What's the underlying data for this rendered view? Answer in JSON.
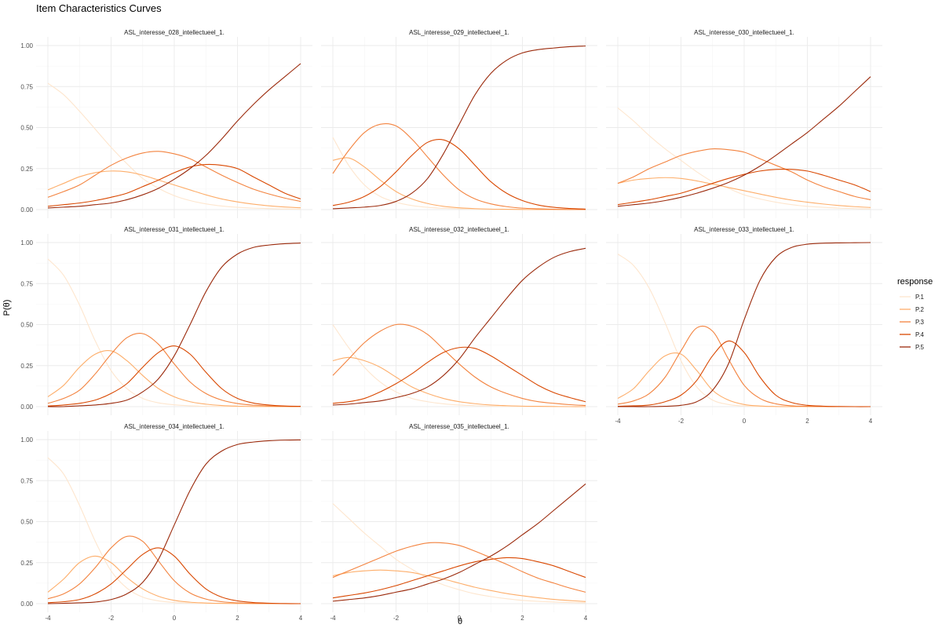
{
  "chart_data": {
    "type": "line",
    "title": "Item Characteristics Curves",
    "xlabel": "θ",
    "ylabel": "P(θ)",
    "xlim": [
      -4,
      4
    ],
    "ylim": [
      0,
      1
    ],
    "x_ticks": [
      "-4",
      "-2",
      "0",
      "2",
      "4"
    ],
    "y_ticks": [
      "0.00",
      "0.25",
      "0.50",
      "0.75",
      "1.00"
    ],
    "grid": true,
    "legend": {
      "title": "response",
      "position": "right",
      "entries": [
        "P.1",
        "P.2",
        "P.3",
        "P.4",
        "P.5"
      ]
    },
    "series_colors": [
      "#fee6ce",
      "#fdae6b",
      "#f3833f",
      "#d94801",
      "#9b2a0c"
    ],
    "x": [
      -4,
      -3.5,
      -3,
      -2.5,
      -2,
      -1.5,
      -1,
      -0.5,
      0,
      0.5,
      1,
      1.5,
      2,
      2.5,
      3,
      3.5,
      4
    ],
    "panels": [
      {
        "title": "ASL_interesse_028_intellectueel_1.",
        "series": [
          {
            "name": "P.1",
            "values": [
              0.77,
              0.7,
              0.6,
              0.49,
              0.38,
              0.28,
              0.19,
              0.13,
              0.085,
              0.055,
              0.035,
              0.022,
              0.014,
              0.009,
              0.006,
              0.004,
              0.002
            ]
          },
          {
            "name": "P.2",
            "values": [
              0.12,
              0.16,
              0.2,
              0.225,
              0.235,
              0.23,
              0.21,
              0.18,
              0.15,
              0.12,
              0.09,
              0.065,
              0.047,
              0.033,
              0.023,
              0.016,
              0.011
            ]
          },
          {
            "name": "P.3",
            "values": [
              0.075,
              0.11,
              0.15,
              0.21,
              0.27,
              0.315,
              0.345,
              0.355,
              0.34,
              0.31,
              0.26,
              0.21,
              0.165,
              0.125,
              0.095,
              0.07,
              0.05
            ]
          },
          {
            "name": "P.4",
            "values": [
              0.02,
              0.03,
              0.04,
              0.055,
              0.075,
              0.1,
              0.14,
              0.18,
              0.225,
              0.26,
              0.275,
              0.27,
              0.25,
              0.2,
              0.15,
              0.1,
              0.065
            ]
          },
          {
            "name": "P.5",
            "values": [
              0.01,
              0.015,
              0.02,
              0.03,
              0.04,
              0.06,
              0.09,
              0.13,
              0.185,
              0.25,
              0.33,
              0.43,
              0.54,
              0.64,
              0.73,
              0.81,
              0.89
            ]
          }
        ]
      },
      {
        "title": "ASL_interesse_029_intellectueel_1.",
        "series": [
          {
            "name": "P.1",
            "values": [
              0.44,
              0.27,
              0.15,
              0.08,
              0.045,
              0.025,
              0.014,
              0.008,
              0.005,
              0.003,
              0.002,
              0.001,
              0.001,
              0.0,
              0.0,
              0.0,
              0.0
            ]
          },
          {
            "name": "P.2",
            "values": [
              0.3,
              0.315,
              0.26,
              0.18,
              0.11,
              0.065,
              0.037,
              0.02,
              0.011,
              0.006,
              0.003,
              0.002,
              0.001,
              0.0,
              0.0,
              0.0,
              0.0
            ]
          },
          {
            "name": "P.3",
            "values": [
              0.22,
              0.36,
              0.47,
              0.52,
              0.51,
              0.43,
              0.32,
              0.21,
              0.12,
              0.065,
              0.035,
              0.018,
              0.009,
              0.005,
              0.002,
              0.001,
              0.0
            ]
          },
          {
            "name": "P.4",
            "values": [
              0.025,
              0.045,
              0.08,
              0.14,
              0.23,
              0.33,
              0.41,
              0.425,
              0.37,
              0.27,
              0.17,
              0.1,
              0.055,
              0.028,
              0.014,
              0.007,
              0.003
            ]
          },
          {
            "name": "P.5",
            "values": [
              0.005,
              0.01,
              0.015,
              0.025,
              0.05,
              0.1,
              0.19,
              0.34,
              0.52,
              0.7,
              0.83,
              0.91,
              0.955,
              0.975,
              0.985,
              0.993,
              0.997
            ]
          }
        ]
      },
      {
        "title": "ASL_interesse_030_intellectueel_1.",
        "series": [
          {
            "name": "P.1",
            "values": [
              0.62,
              0.54,
              0.45,
              0.37,
              0.3,
              0.23,
              0.17,
              0.13,
              0.09,
              0.065,
              0.045,
              0.03,
              0.02,
              0.014,
              0.009,
              0.006,
              0.004
            ]
          },
          {
            "name": "P.2",
            "values": [
              0.16,
              0.18,
              0.19,
              0.195,
              0.19,
              0.175,
              0.155,
              0.135,
              0.115,
              0.095,
              0.075,
              0.058,
              0.045,
              0.034,
              0.025,
              0.018,
              0.013
            ]
          },
          {
            "name": "P.3",
            "values": [
              0.16,
              0.2,
              0.25,
              0.29,
              0.33,
              0.355,
              0.37,
              0.365,
              0.35,
              0.31,
              0.27,
              0.23,
              0.18,
              0.14,
              0.11,
              0.08,
              0.06
            ]
          },
          {
            "name": "P.4",
            "values": [
              0.03,
              0.045,
              0.06,
              0.08,
              0.1,
              0.13,
              0.16,
              0.19,
              0.215,
              0.235,
              0.245,
              0.245,
              0.235,
              0.21,
              0.18,
              0.15,
              0.11
            ]
          },
          {
            "name": "P.5",
            "values": [
              0.02,
              0.03,
              0.04,
              0.055,
              0.075,
              0.1,
              0.13,
              0.165,
              0.21,
              0.265,
              0.33,
              0.4,
              0.47,
              0.55,
              0.63,
              0.72,
              0.81
            ]
          }
        ]
      },
      {
        "title": "ASL_interesse_031_intellectueel_1.",
        "series": [
          {
            "name": "P.1",
            "values": [
              0.9,
              0.8,
              0.62,
              0.4,
              0.22,
              0.11,
              0.05,
              0.023,
              0.011,
              0.005,
              0.002,
              0.001,
              0.0,
              0.0,
              0.0,
              0.0,
              0.0
            ]
          },
          {
            "name": "P.2",
            "values": [
              0.06,
              0.13,
              0.24,
              0.32,
              0.34,
              0.28,
              0.19,
              0.11,
              0.06,
              0.03,
              0.015,
              0.007,
              0.003,
              0.001,
              0.001,
              0.0,
              0.0
            ]
          },
          {
            "name": "P.3",
            "values": [
              0.02,
              0.05,
              0.1,
              0.2,
              0.32,
              0.42,
              0.445,
              0.38,
              0.26,
              0.15,
              0.08,
              0.04,
              0.019,
              0.009,
              0.004,
              0.002,
              0.001
            ]
          },
          {
            "name": "P.4",
            "values": [
              0.004,
              0.01,
              0.02,
              0.04,
              0.08,
              0.14,
              0.24,
              0.33,
              0.37,
              0.32,
              0.21,
              0.11,
              0.05,
              0.022,
              0.01,
              0.004,
              0.002
            ]
          },
          {
            "name": "P.5",
            "values": [
              0.0,
              0.0,
              0.005,
              0.01,
              0.02,
              0.04,
              0.09,
              0.17,
              0.31,
              0.5,
              0.7,
              0.85,
              0.93,
              0.97,
              0.985,
              0.993,
              0.997
            ]
          }
        ]
      },
      {
        "title": "ASL_interesse_032_intellectueel_1.",
        "series": [
          {
            "name": "P.1",
            "values": [
              0.5,
              0.36,
              0.24,
              0.15,
              0.09,
              0.05,
              0.03,
              0.017,
              0.01,
              0.006,
              0.003,
              0.002,
              0.001,
              0.0,
              0.0,
              0.0,
              0.0
            ]
          },
          {
            "name": "P.2",
            "values": [
              0.28,
              0.3,
              0.28,
              0.24,
              0.18,
              0.12,
              0.08,
              0.05,
              0.03,
              0.018,
              0.01,
              0.006,
              0.003,
              0.002,
              0.001,
              0.0,
              0.0
            ]
          },
          {
            "name": "P.3",
            "values": [
              0.19,
              0.29,
              0.39,
              0.46,
              0.5,
              0.49,
              0.44,
              0.35,
              0.26,
              0.18,
              0.12,
              0.08,
              0.05,
              0.03,
              0.02,
              0.012,
              0.007
            ]
          },
          {
            "name": "P.4",
            "values": [
              0.02,
              0.03,
              0.05,
              0.09,
              0.14,
              0.2,
              0.27,
              0.33,
              0.36,
              0.355,
              0.31,
              0.25,
              0.19,
              0.13,
              0.085,
              0.055,
              0.03
            ]
          },
          {
            "name": "P.5",
            "values": [
              0.01,
              0.015,
              0.025,
              0.035,
              0.055,
              0.08,
              0.12,
              0.19,
              0.29,
              0.42,
              0.54,
              0.66,
              0.77,
              0.85,
              0.91,
              0.945,
              0.965
            ]
          }
        ]
      },
      {
        "title": "ASL_interesse_033_intellectueel_1.",
        "series": [
          {
            "name": "P.1",
            "values": [
              0.93,
              0.86,
              0.72,
              0.51,
              0.28,
              0.12,
              0.04,
              0.013,
              0.004,
              0.001,
              0.0,
              0.0,
              0.0,
              0.0,
              0.0,
              0.0,
              0.0
            ]
          },
          {
            "name": "P.2",
            "values": [
              0.05,
              0.11,
              0.22,
              0.31,
              0.32,
              0.22,
              0.1,
              0.04,
              0.013,
              0.004,
              0.001,
              0.0,
              0.0,
              0.0,
              0.0,
              0.0,
              0.0
            ]
          },
          {
            "name": "P.3",
            "values": [
              0.015,
              0.035,
              0.08,
              0.18,
              0.34,
              0.48,
              0.46,
              0.29,
              0.13,
              0.05,
              0.017,
              0.005,
              0.002,
              0.0,
              0.0,
              0.0,
              0.0
            ]
          },
          {
            "name": "P.4",
            "values": [
              0.002,
              0.005,
              0.01,
              0.03,
              0.07,
              0.16,
              0.31,
              0.4,
              0.33,
              0.18,
              0.07,
              0.025,
              0.008,
              0.003,
              0.001,
              0.0,
              0.0
            ]
          },
          {
            "name": "P.5",
            "values": [
              0.0,
              0.0,
              0.0,
              0.002,
              0.008,
              0.03,
              0.1,
              0.26,
              0.53,
              0.77,
              0.91,
              0.97,
              0.99,
              0.996,
              0.998,
              0.999,
              1.0
            ]
          }
        ]
      },
      {
        "title": "ASL_interesse_034_intellectueel_1.",
        "series": [
          {
            "name": "P.1",
            "values": [
              0.89,
              0.79,
              0.6,
              0.38,
              0.2,
              0.095,
              0.04,
              0.017,
              0.007,
              0.003,
              0.001,
              0.0,
              0.0,
              0.0,
              0.0,
              0.0,
              0.0
            ]
          },
          {
            "name": "P.2",
            "values": [
              0.07,
              0.15,
              0.25,
              0.29,
              0.25,
              0.16,
              0.09,
              0.045,
              0.02,
              0.009,
              0.004,
              0.002,
              0.001,
              0.0,
              0.0,
              0.0,
              0.0
            ]
          },
          {
            "name": "P.3",
            "values": [
              0.03,
              0.06,
              0.12,
              0.22,
              0.34,
              0.41,
              0.38,
              0.26,
              0.14,
              0.065,
              0.028,
              0.012,
              0.005,
              0.002,
              0.001,
              0.0,
              0.0
            ]
          },
          {
            "name": "P.4",
            "values": [
              0.006,
              0.012,
              0.025,
              0.06,
              0.12,
              0.21,
              0.3,
              0.34,
              0.29,
              0.18,
              0.09,
              0.04,
              0.017,
              0.007,
              0.003,
              0.001,
              0.0
            ]
          },
          {
            "name": "P.5",
            "values": [
              0.0,
              0.002,
              0.005,
              0.01,
              0.025,
              0.06,
              0.13,
              0.27,
              0.48,
              0.69,
              0.85,
              0.93,
              0.97,
              0.985,
              0.993,
              0.997,
              0.998
            ]
          }
        ]
      },
      {
        "title": "ASL_interesse_035_intellectueel_1.",
        "series": [
          {
            "name": "P.1",
            "values": [
              0.61,
              0.52,
              0.43,
              0.35,
              0.27,
              0.21,
              0.155,
              0.115,
              0.085,
              0.06,
              0.043,
              0.03,
              0.02,
              0.014,
              0.01,
              0.007,
              0.005
            ]
          },
          {
            "name": "P.2",
            "values": [
              0.17,
              0.19,
              0.2,
              0.205,
              0.2,
              0.19,
              0.17,
              0.15,
              0.125,
              0.1,
              0.08,
              0.062,
              0.048,
              0.036,
              0.026,
              0.019,
              0.013
            ]
          },
          {
            "name": "P.3",
            "values": [
              0.16,
              0.2,
              0.24,
              0.28,
              0.32,
              0.35,
              0.37,
              0.37,
              0.355,
              0.32,
              0.28,
              0.24,
              0.195,
              0.155,
              0.125,
              0.095,
              0.07
            ]
          },
          {
            "name": "P.4",
            "values": [
              0.035,
              0.05,
              0.065,
              0.085,
              0.11,
              0.14,
              0.17,
              0.2,
              0.23,
              0.255,
              0.27,
              0.28,
              0.275,
              0.255,
              0.23,
              0.195,
              0.16
            ]
          },
          {
            "name": "P.5",
            "values": [
              0.015,
              0.025,
              0.035,
              0.05,
              0.07,
              0.09,
              0.12,
              0.15,
              0.19,
              0.24,
              0.29,
              0.35,
              0.42,
              0.49,
              0.57,
              0.65,
              0.73
            ]
          }
        ]
      }
    ]
  }
}
